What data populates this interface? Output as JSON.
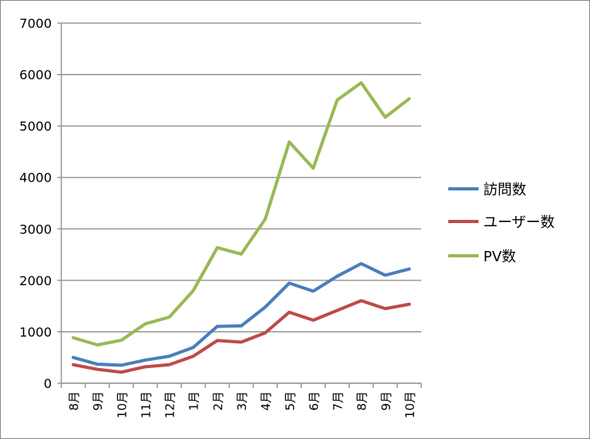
{
  "chart_data": {
    "type": "line",
    "title": "",
    "xlabel": "",
    "ylabel": "",
    "ylim": [
      0,
      7000
    ],
    "yticks": [
      0,
      1000,
      2000,
      3000,
      4000,
      5000,
      6000,
      7000
    ],
    "grid": true,
    "legend_position": "right",
    "categories": [
      "8月",
      "9月",
      "10月",
      "11月",
      "12月",
      "1月",
      "2月",
      "3月",
      "4月",
      "5月",
      "6月",
      "7月",
      "8月",
      "9月",
      "10月"
    ],
    "series": [
      {
        "name": "訪問数",
        "color": "#4a7ebb",
        "values": [
          500,
          370,
          350,
          450,
          525,
          695,
          1105,
          1115,
          1480,
          1945,
          1790,
          2080,
          2325,
          2100,
          2220
        ]
      },
      {
        "name": "ユーザー数",
        "color": "#be4b48",
        "values": [
          360,
          270,
          215,
          320,
          360,
          525,
          830,
          800,
          980,
          1380,
          1225,
          1415,
          1605,
          1450,
          1535
        ]
      },
      {
        "name": "PV数",
        "color": "#98b954",
        "values": [
          885,
          745,
          835,
          1155,
          1285,
          1800,
          2635,
          2510,
          3190,
          4690,
          4180,
          5505,
          5840,
          5170,
          5530
        ]
      }
    ]
  }
}
